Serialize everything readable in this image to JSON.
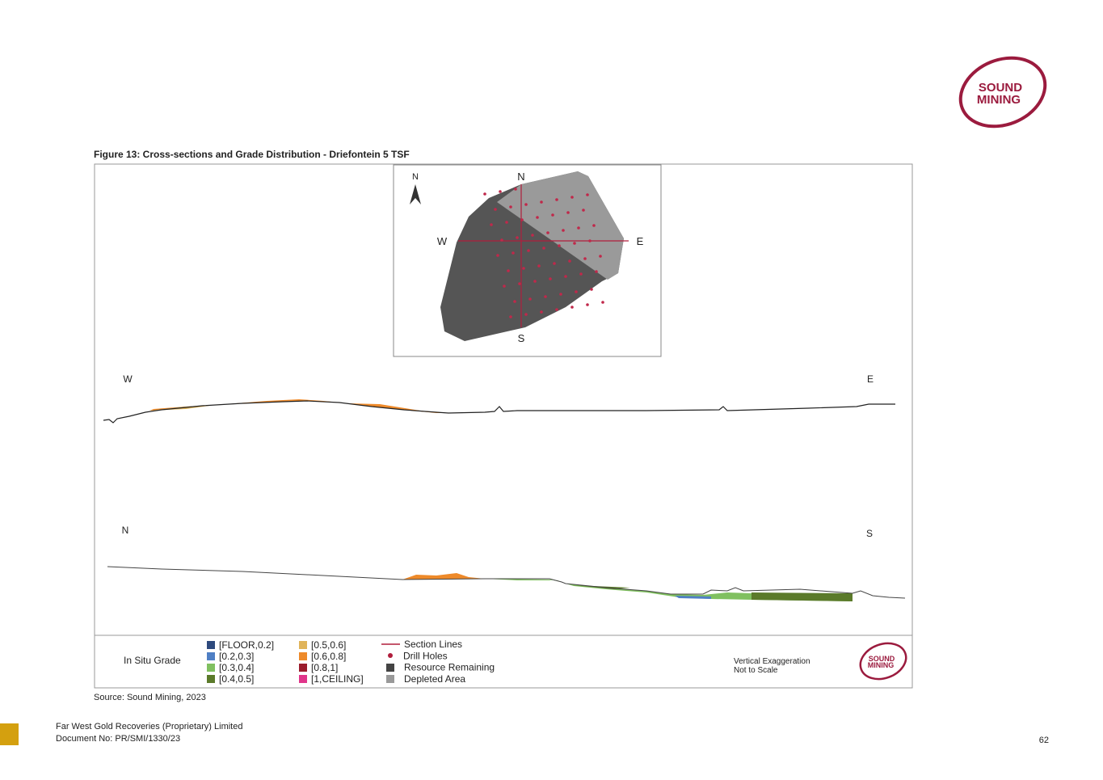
{
  "header": {
    "logo": [
      "SOUND",
      "MINING"
    ]
  },
  "figure": {
    "title": "Figure 13: Cross-sections and Grade Distribution - Driefontein 5 TSF",
    "map": {
      "north_arrow": "N",
      "compass": {
        "north": "N",
        "east": "E",
        "south": "S",
        "west": "W"
      }
    },
    "sections": [
      {
        "start": "W",
        "end": "E"
      },
      {
        "start": "N",
        "end": "S"
      }
    ],
    "legend": {
      "title": "In Situ Grade",
      "grades": [
        {
          "label": "[FLOOR,0.2]",
          "color": "#2e4a7d"
        },
        {
          "label": "[0.2,0.3]",
          "color": "#4f7fc4"
        },
        {
          "label": "[0.3,0.4]",
          "color": "#80c060"
        },
        {
          "label": "[0.4,0.5]",
          "color": "#5b7a2a"
        },
        {
          "label": "[0.5,0.6]",
          "color": "#e0b45a"
        },
        {
          "label": "[0.6,0.8]",
          "color": "#ee8a2a"
        },
        {
          "label": "[0.8,1]",
          "color": "#9b1c2c"
        },
        {
          "label": "[1,CEILING]",
          "color": "#e0358a"
        }
      ],
      "keys": [
        "Section Lines",
        "Drill Holes",
        "Resource Remaining",
        "Depleted Area"
      ],
      "note": [
        "Vertical Exaggeration",
        "Not to Scale"
      ],
      "logo": [
        "SOUND",
        "MINING"
      ]
    },
    "source": "Source:  Sound Mining, 2023"
  },
  "footer": {
    "company": "Far West Gold Recoveries (Proprietary) Limited",
    "document": "Document No: PR/SMI/1330/23",
    "page": "62"
  }
}
